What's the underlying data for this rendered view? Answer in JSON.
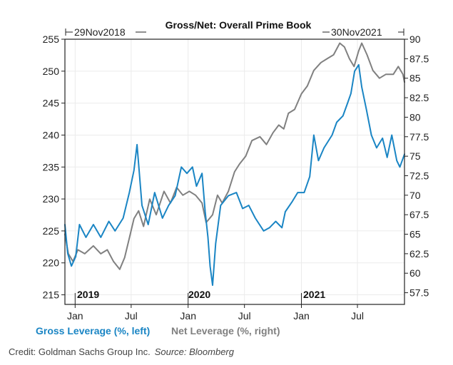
{
  "colors": {
    "gross": "#1a85c4",
    "net": "#808080",
    "grid": "#ebebeb",
    "axis": "#222222"
  },
  "credit": {
    "text": "Credit: Goldman Sachs Group Inc.",
    "source": "Source: Bloomberg"
  },
  "chart_data": {
    "type": "line",
    "title": "Gross/Net: Overall Prime Book",
    "start_annotation": "29Nov2018",
    "end_annotation": "30Nov2021",
    "x_range": [
      "2018-11-29",
      "2021-11-30"
    ],
    "x_ticks": [
      "Jan",
      "Jul",
      "Jan",
      "Jul",
      "Jan",
      "Jul"
    ],
    "year_labels": [
      "2019",
      "2020",
      "2021"
    ],
    "legend": [
      "Gross Leverage (%, left)",
      "Net Leverage (%, right)"
    ],
    "y_left": {
      "range": [
        213.5,
        255
      ],
      "ticks": [
        "255",
        "250",
        "245",
        "240",
        "235",
        "230",
        "225",
        "220",
        "215"
      ]
    },
    "y_right": {
      "range": [
        56,
        90
      ],
      "ticks": [
        "90",
        "87.5",
        "85",
        "82.5",
        "80",
        "77.5",
        "75",
        "72.5",
        "70",
        "67.5",
        "65",
        "62.5",
        "60",
        "57.5"
      ]
    },
    "series": [
      {
        "name": "Gross Leverage",
        "axis": "left",
        "points": [
          [
            "2018-11-29",
            226
          ],
          [
            "2018-12-08",
            221.5
          ],
          [
            "2018-12-20",
            219.5
          ],
          [
            "2019-01-03",
            221
          ],
          [
            "2019-01-15",
            226
          ],
          [
            "2019-02-05",
            224
          ],
          [
            "2019-03-01",
            226
          ],
          [
            "2019-03-25",
            224
          ],
          [
            "2019-04-20",
            226.5
          ],
          [
            "2019-05-10",
            225
          ],
          [
            "2019-06-05",
            227
          ],
          [
            "2019-06-25",
            231
          ],
          [
            "2019-07-10",
            234.5
          ],
          [
            "2019-07-20",
            238.5
          ],
          [
            "2019-08-05",
            229
          ],
          [
            "2019-08-25",
            226
          ],
          [
            "2019-09-15",
            231
          ],
          [
            "2019-10-10",
            227
          ],
          [
            "2019-10-30",
            229
          ],
          [
            "2019-11-20",
            230.5
          ],
          [
            "2019-12-10",
            235
          ],
          [
            "2019-12-28",
            234
          ],
          [
            "2020-01-15",
            235
          ],
          [
            "2020-01-28",
            232
          ],
          [
            "2020-02-15",
            234
          ],
          [
            "2020-02-25",
            228
          ],
          [
            "2020-03-05",
            224
          ],
          [
            "2020-03-12",
            219.5
          ],
          [
            "2020-03-20",
            216.5
          ],
          [
            "2020-03-30",
            223
          ],
          [
            "2020-04-15",
            229
          ],
          [
            "2020-05-10",
            230.5
          ],
          [
            "2020-06-05",
            231
          ],
          [
            "2020-06-25",
            228.5
          ],
          [
            "2020-07-15",
            229
          ],
          [
            "2020-08-05",
            227
          ],
          [
            "2020-09-01",
            225
          ],
          [
            "2020-09-20",
            225.5
          ],
          [
            "2020-10-10",
            226.5
          ],
          [
            "2020-10-30",
            225.5
          ],
          [
            "2020-11-10",
            228
          ],
          [
            "2020-12-01",
            229.5
          ],
          [
            "2020-12-20",
            231
          ],
          [
            "2021-01-10",
            231
          ],
          [
            "2021-01-28",
            233.5
          ],
          [
            "2021-02-10",
            240
          ],
          [
            "2021-02-25",
            236
          ],
          [
            "2021-03-15",
            238
          ],
          [
            "2021-04-10",
            240
          ],
          [
            "2021-04-25",
            242
          ],
          [
            "2021-05-15",
            243
          ],
          [
            "2021-05-30",
            245
          ],
          [
            "2021-06-10",
            246.5
          ],
          [
            "2021-06-22",
            250
          ],
          [
            "2021-07-05",
            251
          ],
          [
            "2021-07-15",
            247.5
          ],
          [
            "2021-07-30",
            244
          ],
          [
            "2021-08-15",
            240
          ],
          [
            "2021-09-01",
            238
          ],
          [
            "2021-09-20",
            239.5
          ],
          [
            "2021-10-05",
            236.5
          ],
          [
            "2021-10-20",
            240
          ],
          [
            "2021-11-05",
            236
          ],
          [
            "2021-11-15",
            235
          ],
          [
            "2021-11-30",
            237
          ]
        ]
      },
      {
        "name": "Net Leverage",
        "axis": "right",
        "points": [
          [
            "2018-11-29",
            65
          ],
          [
            "2018-12-10",
            62.5
          ],
          [
            "2018-12-25",
            61.5
          ],
          [
            "2019-01-10",
            63
          ],
          [
            "2019-02-01",
            62.5
          ],
          [
            "2019-03-01",
            63.5
          ],
          [
            "2019-03-25",
            62.5
          ],
          [
            "2019-04-15",
            63
          ],
          [
            "2019-05-05",
            61.5
          ],
          [
            "2019-05-25",
            60.5
          ],
          [
            "2019-06-10",
            62
          ],
          [
            "2019-06-25",
            64.5
          ],
          [
            "2019-07-10",
            67
          ],
          [
            "2019-07-25",
            68
          ],
          [
            "2019-08-10",
            66
          ],
          [
            "2019-08-30",
            69.5
          ],
          [
            "2019-09-20",
            67.5
          ],
          [
            "2019-10-15",
            70.5
          ],
          [
            "2019-11-05",
            69
          ],
          [
            "2019-11-25",
            71
          ],
          [
            "2019-12-15",
            70
          ],
          [
            "2020-01-05",
            70.5
          ],
          [
            "2020-01-25",
            70
          ],
          [
            "2020-02-15",
            69
          ],
          [
            "2020-02-28",
            66.5
          ],
          [
            "2020-03-10",
            67
          ],
          [
            "2020-03-20",
            67.5
          ],
          [
            "2020-04-05",
            70
          ],
          [
            "2020-04-20",
            69
          ],
          [
            "2020-05-10",
            70.5
          ],
          [
            "2020-05-30",
            73
          ],
          [
            "2020-06-15",
            74
          ],
          [
            "2020-07-05",
            75
          ],
          [
            "2020-07-25",
            77
          ],
          [
            "2020-08-20",
            77.5
          ],
          [
            "2020-09-10",
            76.5
          ],
          [
            "2020-10-01",
            78
          ],
          [
            "2020-10-20",
            79
          ],
          [
            "2020-11-05",
            78.5
          ],
          [
            "2020-11-20",
            80.5
          ],
          [
            "2020-12-10",
            81
          ],
          [
            "2021-01-01",
            83
          ],
          [
            "2021-01-20",
            84
          ],
          [
            "2021-02-10",
            86
          ],
          [
            "2021-03-05",
            87
          ],
          [
            "2021-03-25",
            87.5
          ],
          [
            "2021-04-15",
            88
          ],
          [
            "2021-05-05",
            89.5
          ],
          [
            "2021-05-20",
            89
          ],
          [
            "2021-06-05",
            87.5
          ],
          [
            "2021-06-20",
            86.5
          ],
          [
            "2021-07-05",
            88.5
          ],
          [
            "2021-07-15",
            89.5
          ],
          [
            "2021-08-01",
            88
          ],
          [
            "2021-08-20",
            86
          ],
          [
            "2021-09-10",
            85
          ],
          [
            "2021-10-01",
            85.5
          ],
          [
            "2021-10-25",
            85.5
          ],
          [
            "2021-11-10",
            86.5
          ],
          [
            "2021-11-25",
            85.5
          ],
          [
            "2021-11-30",
            84.5
          ]
        ]
      }
    ]
  }
}
